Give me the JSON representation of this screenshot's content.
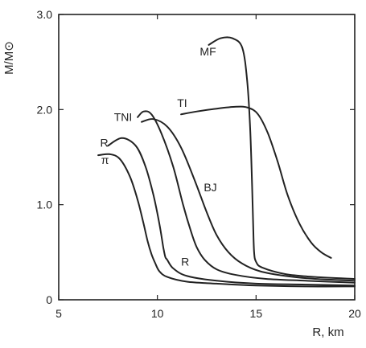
{
  "chart_data": {
    "type": "line",
    "xlabel": "R, km",
    "ylabel": "M/M⊙",
    "xlim": [
      5,
      20
    ],
    "ylim": [
      0,
      3.0
    ],
    "x_ticks": [
      5,
      10,
      15,
      20
    ],
    "x_tick_labels": [
      "5",
      "10",
      "15",
      "20"
    ],
    "y_ticks": [
      0,
      1.0,
      2.0,
      3.0
    ],
    "y_tick_labels": [
      "0",
      "1.0",
      "2.0",
      "3.0"
    ],
    "grid": false,
    "line_color": "#222222",
    "series": [
      {
        "name": "π",
        "x": [
          7.0,
          7.6,
          8.1,
          8.6,
          9.0,
          9.3,
          9.5,
          9.7,
          9.9,
          10.1,
          10.5,
          11.5,
          13.0,
          15.0,
          17.5,
          20.0
        ],
        "y": [
          1.52,
          1.53,
          1.48,
          1.3,
          1.05,
          0.8,
          0.62,
          0.48,
          0.38,
          0.3,
          0.24,
          0.19,
          0.17,
          0.15,
          0.14,
          0.14
        ]
      },
      {
        "name": "R",
        "x": [
          7.5,
          8.2,
          8.9,
          9.4,
          9.8,
          10.1,
          10.3,
          10.4,
          10.5,
          10.8,
          11.5,
          13.0,
          15.0,
          17.5,
          20.0
        ],
        "y": [
          1.62,
          1.7,
          1.62,
          1.4,
          1.1,
          0.8,
          0.55,
          0.45,
          0.42,
          0.33,
          0.25,
          0.2,
          0.17,
          0.16,
          0.15
        ]
      },
      {
        "name": "TNI",
        "x": [
          9.0,
          9.3,
          9.7,
          10.2,
          10.8,
          11.3,
          11.7,
          12.0,
          12.4,
          13.0,
          14.0,
          15.5,
          17.5,
          20.0
        ],
        "y": [
          1.92,
          1.98,
          1.95,
          1.75,
          1.4,
          1.0,
          0.72,
          0.55,
          0.42,
          0.32,
          0.26,
          0.22,
          0.2,
          0.18
        ]
      },
      {
        "name": "BJ",
        "x": [
          9.2,
          9.8,
          10.5,
          11.2,
          11.9,
          12.5,
          13.0,
          13.6,
          14.3,
          15.2,
          16.5,
          18.0,
          20.0
        ],
        "y": [
          1.87,
          1.9,
          1.82,
          1.6,
          1.25,
          0.92,
          0.68,
          0.5,
          0.38,
          0.3,
          0.25,
          0.22,
          0.2
        ]
      },
      {
        "name": "TI",
        "x": [
          11.2,
          12.0,
          13.0,
          14.0,
          14.6,
          15.1,
          15.6,
          16.1,
          16.6,
          17.2,
          17.8,
          18.3,
          18.8
        ],
        "y": [
          1.95,
          1.98,
          2.01,
          2.03,
          2.02,
          1.95,
          1.75,
          1.45,
          1.1,
          0.8,
          0.6,
          0.5,
          0.44
        ]
      },
      {
        "name": "MF",
        "x": [
          12.6,
          13.2,
          13.8,
          14.3,
          14.55,
          14.7,
          14.8,
          14.85,
          14.9,
          15.0,
          15.3,
          16.5,
          18.0,
          20.0
        ],
        "y": [
          2.68,
          2.75,
          2.75,
          2.65,
          2.3,
          1.8,
          1.2,
          0.8,
          0.5,
          0.4,
          0.34,
          0.27,
          0.24,
          0.22
        ]
      }
    ],
    "annotations": [
      {
        "text": "MF",
        "x": 12.15,
        "y": 2.57
      },
      {
        "text": "TI",
        "x": 11.0,
        "y": 2.03
      },
      {
        "text": "TNI",
        "x": 7.8,
        "y": 1.88
      },
      {
        "text": "BJ",
        "x": 12.35,
        "y": 1.14
      },
      {
        "text": "R",
        "x": 7.1,
        "y": 1.61
      },
      {
        "text": "π",
        "x": 7.15,
        "y": 1.43
      },
      {
        "text": "R",
        "x": 11.2,
        "y": 0.36
      }
    ]
  }
}
